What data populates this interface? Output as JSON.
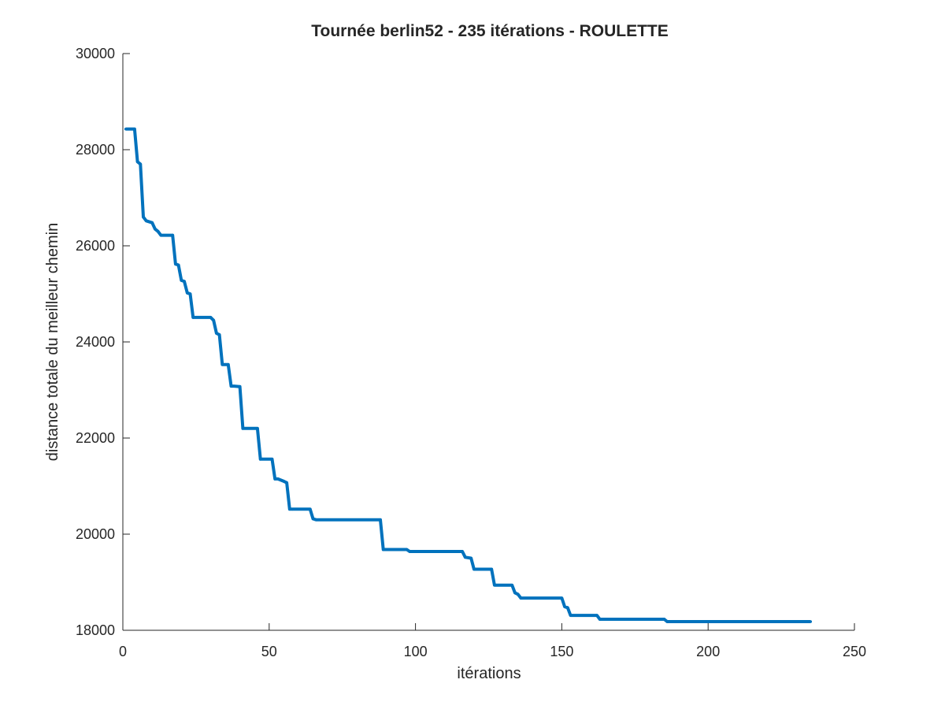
{
  "chart_data": {
    "type": "line",
    "title": "Tournée berlin52 - 235 itérations - ROULETTE",
    "xlabel": "itérations",
    "ylabel": "distance totale du meilleur chemin",
    "xlim": [
      0,
      250
    ],
    "ylim": [
      18000,
      30000
    ],
    "xticks": [
      0,
      50,
      100,
      150,
      200,
      250
    ],
    "yticks": [
      18000,
      20000,
      22000,
      24000,
      26000,
      28000,
      30000
    ],
    "xtick_labels": [
      "0",
      "50",
      "100",
      "150",
      "200",
      "250"
    ],
    "ytick_labels": [
      "18000",
      "20000",
      "22000",
      "24000",
      "26000",
      "28000",
      "30000"
    ],
    "grid": false,
    "series": [
      {
        "color": "#0072BD",
        "x": [
          1,
          4,
          5,
          6,
          7,
          8,
          10,
          11,
          12,
          13,
          17,
          18,
          19,
          20,
          21,
          22,
          23,
          24,
          30,
          31,
          32,
          33,
          34,
          35,
          36,
          37,
          38,
          40,
          41,
          46,
          47,
          51,
          52,
          53,
          55,
          56,
          57,
          58,
          64,
          65,
          66,
          88,
          89,
          93,
          97,
          98,
          116,
          117,
          119,
          120,
          126,
          127,
          133,
          134,
          135,
          136,
          150,
          151,
          152,
          153,
          162,
          163,
          185,
          186,
          235
        ],
        "y": [
          28430,
          28430,
          27750,
          27700,
          26600,
          26520,
          26480,
          26350,
          26300,
          26220,
          26220,
          25620,
          25600,
          25280,
          25260,
          25020,
          25000,
          24510,
          24510,
          24450,
          24180,
          24150,
          23530,
          23530,
          23530,
          23080,
          23080,
          23070,
          22200,
          22200,
          21560,
          21560,
          21150,
          21150,
          21100,
          21070,
          20520,
          20520,
          20520,
          20320,
          20300,
          20300,
          19680,
          19680,
          19680,
          19640,
          19640,
          19520,
          19500,
          19270,
          19270,
          18940,
          18940,
          18780,
          18750,
          18670,
          18670,
          18490,
          18470,
          18310,
          18310,
          18230,
          18230,
          18180,
          18180
        ]
      }
    ]
  }
}
